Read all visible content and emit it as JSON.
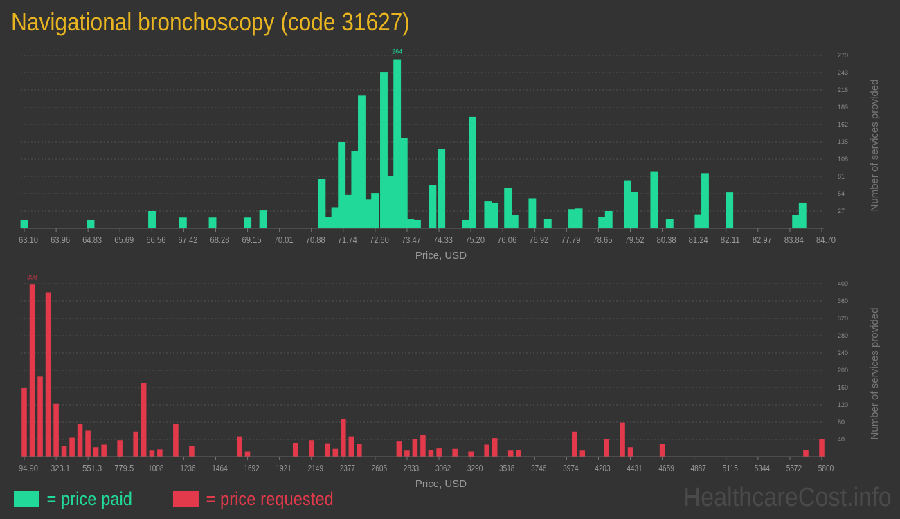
{
  "title": "Navigational bronchoscopy (code 31627)",
  "legend": {
    "paid_label": "= price paid",
    "requested_label": "= price requested",
    "paid_color": "#21d998",
    "requested_color": "#e23a4b"
  },
  "watermark": "HealthcareCost.info",
  "chart_data": [
    {
      "type": "bar",
      "name": "price paid",
      "color": "#21d998",
      "xlabel": "Price, USD",
      "ylabel": "Number of services provided",
      "xlim": [
        63.1,
        84.7
      ],
      "ylim": [
        0,
        270
      ],
      "x_ticks": [
        "63.10",
        "63.96",
        "64.83",
        "65.69",
        "66.56",
        "67.42",
        "68.28",
        "69.15",
        "70.01",
        "70.88",
        "71.74",
        "72.60",
        "73.47",
        "74.33",
        "75.20",
        "76.06",
        "76.92",
        "77.79",
        "78.65",
        "79.52",
        "80.38",
        "81.24",
        "82.11",
        "82.97",
        "83.84",
        "84.70"
      ],
      "y_ticks": [
        27,
        54,
        81,
        108,
        135,
        162,
        189,
        216,
        243,
        270
      ],
      "max_label": "264",
      "bin_width": 0.24,
      "grid": true,
      "points": [
        {
          "x": 63.1,
          "y": 13
        },
        {
          "x": 64.9,
          "y": 13
        },
        {
          "x": 66.56,
          "y": 27
        },
        {
          "x": 67.4,
          "y": 17
        },
        {
          "x": 68.2,
          "y": 17
        },
        {
          "x": 69.15,
          "y": 17
        },
        {
          "x": 69.57,
          "y": 28
        },
        {
          "x": 71.16,
          "y": 77
        },
        {
          "x": 71.34,
          "y": 18
        },
        {
          "x": 71.52,
          "y": 33
        },
        {
          "x": 71.7,
          "y": 135
        },
        {
          "x": 71.88,
          "y": 52
        },
        {
          "x": 72.06,
          "y": 121
        },
        {
          "x": 72.24,
          "y": 207
        },
        {
          "x": 72.42,
          "y": 45
        },
        {
          "x": 72.6,
          "y": 55
        },
        {
          "x": 72.84,
          "y": 244
        },
        {
          "x": 73.02,
          "y": 82
        },
        {
          "x": 73.2,
          "y": 264
        },
        {
          "x": 73.38,
          "y": 141
        },
        {
          "x": 73.56,
          "y": 14
        },
        {
          "x": 73.74,
          "y": 13
        },
        {
          "x": 74.16,
          "y": 67
        },
        {
          "x": 74.4,
          "y": 124
        },
        {
          "x": 75.06,
          "y": 13
        },
        {
          "x": 75.24,
          "y": 174
        },
        {
          "x": 75.66,
          "y": 42
        },
        {
          "x": 75.84,
          "y": 40
        },
        {
          "x": 76.2,
          "y": 63
        },
        {
          "x": 76.38,
          "y": 21
        },
        {
          "x": 76.86,
          "y": 47
        },
        {
          "x": 77.28,
          "y": 15
        },
        {
          "x": 77.94,
          "y": 30
        },
        {
          "x": 78.12,
          "y": 31
        },
        {
          "x": 78.75,
          "y": 18
        },
        {
          "x": 78.93,
          "y": 27
        },
        {
          "x": 79.44,
          "y": 75
        },
        {
          "x": 79.62,
          "y": 57
        },
        {
          "x": 80.16,
          "y": 89
        },
        {
          "x": 80.58,
          "y": 15
        },
        {
          "x": 81.36,
          "y": 22
        },
        {
          "x": 81.54,
          "y": 86
        },
        {
          "x": 82.2,
          "y": 56
        },
        {
          "x": 84.0,
          "y": 21
        },
        {
          "x": 84.18,
          "y": 40
        }
      ]
    },
    {
      "type": "bar",
      "name": "price requested",
      "color": "#e23a4b",
      "xlabel": "Price, USD",
      "ylabel": "Number of services provided",
      "xlim": [
        94.9,
        5800
      ],
      "ylim": [
        0,
        400
      ],
      "x_ticks": [
        "94.90",
        "323.1",
        "551.3",
        "779.5",
        "1008",
        "1236",
        "1464",
        "1692",
        "1921",
        "2149",
        "2377",
        "2605",
        "2833",
        "3062",
        "3290",
        "3518",
        "3746",
        "3974",
        "4203",
        "4431",
        "4659",
        "4887",
        "5115",
        "5344",
        "5572",
        "5800"
      ],
      "y_ticks": [
        40,
        80,
        120,
        160,
        200,
        240,
        280,
        320,
        360,
        400
      ],
      "max_label": "398",
      "bin_width": 44,
      "grid": true,
      "points": [
        {
          "x": 94.9,
          "y": 160
        },
        {
          "x": 152,
          "y": 398
        },
        {
          "x": 209,
          "y": 185
        },
        {
          "x": 266,
          "y": 380
        },
        {
          "x": 323,
          "y": 122
        },
        {
          "x": 380,
          "y": 24
        },
        {
          "x": 437,
          "y": 44
        },
        {
          "x": 494,
          "y": 76
        },
        {
          "x": 551,
          "y": 60
        },
        {
          "x": 608,
          "y": 22
        },
        {
          "x": 665,
          "y": 28
        },
        {
          "x": 779,
          "y": 38
        },
        {
          "x": 893,
          "y": 58
        },
        {
          "x": 950,
          "y": 170
        },
        {
          "x": 1008,
          "y": 14
        },
        {
          "x": 1065,
          "y": 17
        },
        {
          "x": 1179,
          "y": 76
        },
        {
          "x": 1293,
          "y": 24
        },
        {
          "x": 1635,
          "y": 47
        },
        {
          "x": 1692,
          "y": 12
        },
        {
          "x": 2035,
          "y": 32
        },
        {
          "x": 2149,
          "y": 38
        },
        {
          "x": 2263,
          "y": 31
        },
        {
          "x": 2320,
          "y": 18
        },
        {
          "x": 2377,
          "y": 88
        },
        {
          "x": 2434,
          "y": 47
        },
        {
          "x": 2491,
          "y": 30
        },
        {
          "x": 2776,
          "y": 35
        },
        {
          "x": 2833,
          "y": 14
        },
        {
          "x": 2890,
          "y": 40
        },
        {
          "x": 2947,
          "y": 51
        },
        {
          "x": 3004,
          "y": 15
        },
        {
          "x": 3062,
          "y": 19
        },
        {
          "x": 3176,
          "y": 18
        },
        {
          "x": 3290,
          "y": 12
        },
        {
          "x": 3404,
          "y": 28
        },
        {
          "x": 3461,
          "y": 43
        },
        {
          "x": 3575,
          "y": 14
        },
        {
          "x": 3632,
          "y": 15
        },
        {
          "x": 4031,
          "y": 58
        },
        {
          "x": 4088,
          "y": 14
        },
        {
          "x": 4260,
          "y": 40
        },
        {
          "x": 4374,
          "y": 79
        },
        {
          "x": 4431,
          "y": 22
        },
        {
          "x": 4659,
          "y": 30
        },
        {
          "x": 5686,
          "y": 16
        },
        {
          "x": 5800,
          "y": 40
        }
      ]
    }
  ]
}
